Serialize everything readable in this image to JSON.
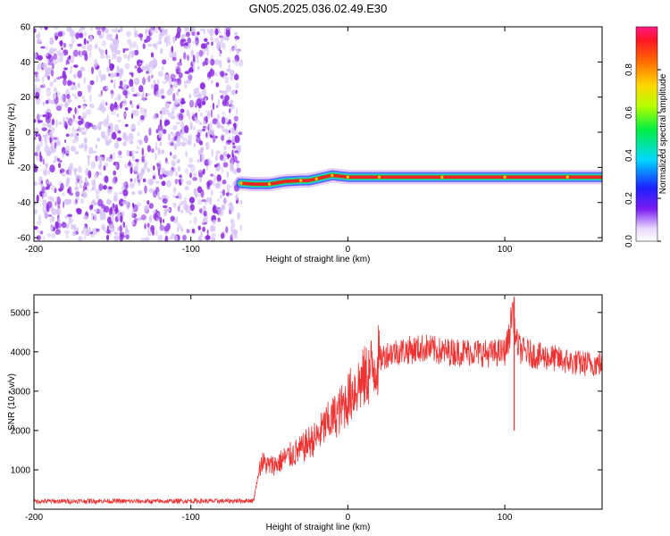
{
  "title": "GN05.2025.036.02.49.E30",
  "colors": {
    "scatter": "#8a2be2",
    "scatter_light": "#d6c2f5",
    "snr_line": "#ee3333",
    "ridge_outer": "#22ccdd",
    "ridge_mid": "#33cc55",
    "ridge_core": "#ee2222"
  },
  "chart_data": [
    {
      "type": "heatmap",
      "xlabel": "Height of straight line (km)",
      "ylabel": "Frequency (Hz)",
      "xlim": [
        -200,
        162
      ],
      "ylim": [
        -62,
        60
      ],
      "x_ticks": [
        -200,
        -100,
        0,
        100
      ],
      "y_ticks": [
        -60,
        -40,
        -20,
        0,
        20,
        40,
        60
      ],
      "grid": false,
      "noise_region": {
        "x_range": [
          -200,
          -68
        ],
        "y_range": [
          -62,
          60
        ],
        "level": "low (~0.1)"
      },
      "ridge": {
        "x": [
          -68,
          -60,
          -50,
          -40,
          -30,
          -25,
          -20,
          -15,
          -10,
          -5,
          0,
          10,
          20,
          40,
          60,
          80,
          100,
          120,
          140,
          162
        ],
        "y": [
          -29,
          -29.5,
          -29.5,
          -28,
          -27.5,
          -27.5,
          -26.5,
          -25.5,
          -24.5,
          -25,
          -25.5,
          -25.5,
          -25.5,
          -25.5,
          -25.5,
          -25.5,
          -25.5,
          -25.5,
          -25.5,
          -25.5
        ],
        "amplitude": 1.0
      },
      "colorbar": {
        "label": "Normalized spectral amplitude",
        "range": [
          0.0,
          1.0
        ],
        "ticks": [
          "0.0",
          "0.2",
          "0.4",
          "0.6",
          "0.8"
        ]
      }
    },
    {
      "type": "line",
      "xlabel": "Height of straight line (km)",
      "ylabel": "SNR (10 * v/v)",
      "xlim": [
        -200,
        162
      ],
      "ylim": [
        0,
        5450
      ],
      "x_ticks": [
        -200,
        -100,
        0,
        100
      ],
      "y_ticks": [
        1000,
        2000,
        3000,
        4000,
        5000
      ],
      "grid": false,
      "series": [
        {
          "x": [
            -200,
            -180,
            -160,
            -140,
            -120,
            -100,
            -80,
            -60,
            -57,
            -55,
            -50,
            -45,
            -40,
            -35,
            -30,
            -25,
            -20,
            -15,
            -10,
            -5,
            0,
            5,
            10,
            15,
            20,
            25,
            30,
            40,
            50,
            60,
            70,
            80,
            90,
            100,
            103,
            105,
            107,
            110,
            120,
            130,
            140,
            150,
            162
          ],
          "values": [
            200,
            200,
            210,
            200,
            200,
            210,
            205,
            220,
            900,
            1200,
            1100,
            1150,
            1300,
            1400,
            1500,
            1700,
            1800,
            2100,
            2300,
            2500,
            2800,
            3100,
            3300,
            3550,
            3800,
            3950,
            4000,
            4050,
            4100,
            4000,
            4000,
            4000,
            3950,
            4000,
            4400,
            5200,
            4300,
            4050,
            3900,
            3850,
            3750,
            3700,
            3700
          ],
          "spikes": [
            {
              "x": 106,
              "low": 2000,
              "high": 5400
            }
          ]
        }
      ]
    }
  ]
}
